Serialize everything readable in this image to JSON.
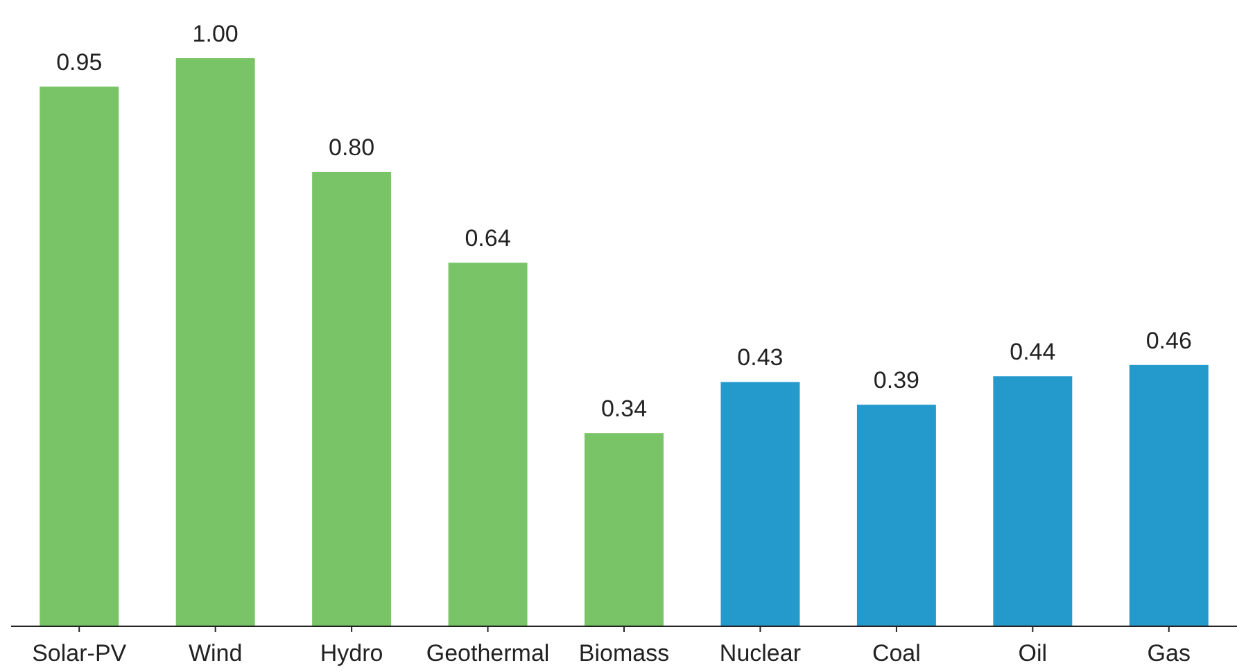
{
  "chart_data": {
    "type": "bar",
    "categories": [
      "Solar-PV",
      "Wind",
      "Hydro",
      "Geothermal",
      "Biomass",
      "Nuclear",
      "Coal",
      "Oil",
      "Gas"
    ],
    "values": [
      0.95,
      1.0,
      0.8,
      0.64,
      0.34,
      0.43,
      0.39,
      0.44,
      0.46
    ],
    "colors": [
      "#79c466",
      "#79c466",
      "#79c466",
      "#79c466",
      "#79c466",
      "#2399cc",
      "#2399cc",
      "#2399cc",
      "#2399cc"
    ],
    "value_labels": [
      "0.95",
      "1.00",
      "0.80",
      "0.64",
      "0.34",
      "0.43",
      "0.39",
      "0.44",
      "0.46"
    ],
    "data_labels": true
  }
}
